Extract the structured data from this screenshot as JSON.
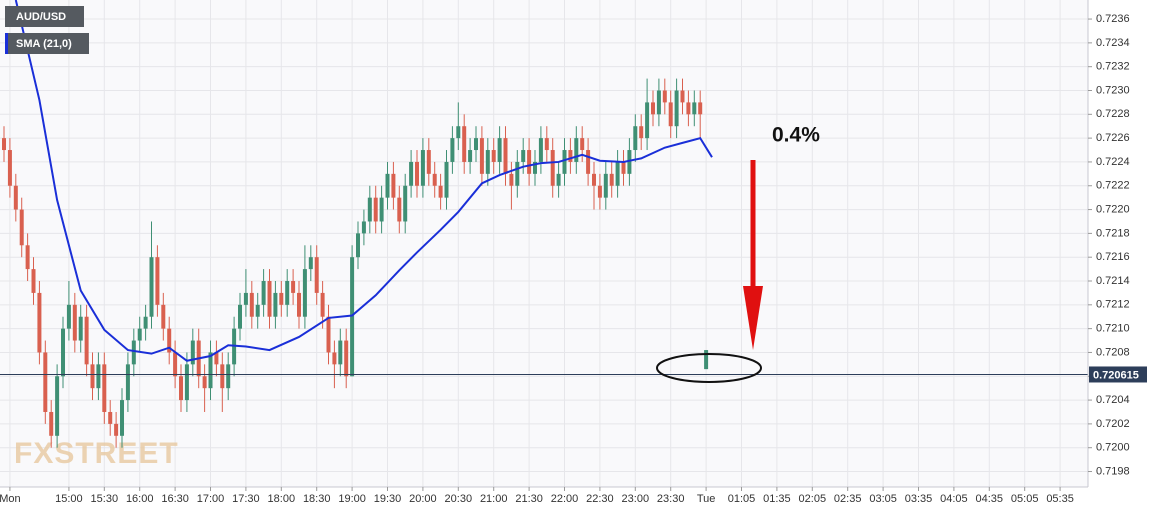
{
  "chart_data": {
    "type": "candlestick",
    "watermark": "FXSTREET",
    "annotation": "0.4%",
    "last_price": 0.720615,
    "grid": true,
    "xlim": [
      -0.68,
      183.73
    ],
    "ylim": [
      0.71967,
      0.72376
    ],
    "xticks": [
      {
        "value": 1,
        "label": "Mon"
      },
      {
        "value": 11,
        "label": "15:00"
      },
      {
        "value": 17,
        "label": "15:30"
      },
      {
        "value": 23,
        "label": "16:00"
      },
      {
        "value": 29,
        "label": "16:30"
      },
      {
        "value": 35,
        "label": "17:00"
      },
      {
        "value": 41,
        "label": "17:30"
      },
      {
        "value": 47,
        "label": "18:00"
      },
      {
        "value": 53,
        "label": "18:30"
      },
      {
        "value": 59,
        "label": "19:00"
      },
      {
        "value": 65,
        "label": "19:30"
      },
      {
        "value": 71,
        "label": "20:00"
      },
      {
        "value": 77,
        "label": "20:30"
      },
      {
        "value": 83,
        "label": "21:00"
      },
      {
        "value": 89,
        "label": "21:30"
      },
      {
        "value": 95,
        "label": "22:00"
      },
      {
        "value": 101,
        "label": "22:30"
      },
      {
        "value": 107,
        "label": "23:00"
      },
      {
        "value": 113,
        "label": "23:30"
      },
      {
        "value": 119,
        "label": "Tue"
      },
      {
        "value": 125,
        "label": "01:05"
      },
      {
        "value": 131,
        "label": "01:35"
      },
      {
        "value": 137,
        "label": "02:05"
      },
      {
        "value": 143,
        "label": "02:35"
      },
      {
        "value": 149,
        "label": "03:05"
      },
      {
        "value": 155,
        "label": "03:35"
      },
      {
        "value": 161,
        "label": "04:05"
      },
      {
        "value": 167,
        "label": "04:35"
      },
      {
        "value": 173,
        "label": "05:05"
      },
      {
        "value": 179,
        "label": "05:35"
      }
    ],
    "yticks": [
      0.7198,
      {
        "value": 0.72,
        "label": "0.7200"
      },
      0.7202,
      0.7204,
      0.7206,
      0.7208,
      {
        "value": 0.721,
        "label": "0.7210"
      },
      0.7212,
      0.7214,
      0.7216,
      0.7218,
      {
        "value": 0.722,
        "label": "0.7220"
      },
      0.7222,
      0.7224,
      0.7226,
      0.7228,
      {
        "value": 0.723,
        "label": "0.7230"
      },
      0.7232,
      0.7234,
      0.7236
    ],
    "series": [
      {
        "name": "AUD/USD",
        "type": "candlestick",
        "up_color": "#3f8f74",
        "down_color": "#d9604f",
        "x": [
          0,
          1,
          2,
          3,
          4,
          5,
          6,
          7,
          8,
          9,
          10,
          11,
          12,
          13,
          14,
          15,
          16,
          17,
          18,
          19,
          20,
          21,
          22,
          23,
          24,
          25,
          26,
          27,
          28,
          29,
          30,
          31,
          32,
          33,
          34,
          35,
          36,
          37,
          38,
          39,
          40,
          41,
          42,
          43,
          44,
          45,
          46,
          47,
          48,
          49,
          50,
          51,
          52,
          53,
          54,
          55,
          56,
          57,
          58,
          59,
          60,
          61,
          62,
          63,
          64,
          65,
          66,
          67,
          68,
          69,
          70,
          71,
          72,
          73,
          74,
          75,
          76,
          77,
          78,
          79,
          80,
          81,
          82,
          83,
          84,
          85,
          86,
          87,
          88,
          89,
          90,
          91,
          92,
          93,
          94,
          95,
          96,
          97,
          98,
          99,
          100,
          101,
          102,
          103,
          104,
          105,
          106,
          107,
          108,
          109,
          110,
          111,
          112,
          113,
          114,
          115,
          116,
          117,
          118,
          119
        ],
        "ohlc": [
          [
            0.7226,
            0.7227,
            0.7224,
            0.7225
          ],
          [
            0.7225,
            0.7226,
            0.7221,
            0.7222
          ],
          [
            0.7222,
            0.7223,
            0.7219,
            0.722
          ],
          [
            0.722,
            0.7221,
            0.7216,
            0.7217
          ],
          [
            0.7217,
            0.7218,
            0.7214,
            0.7215
          ],
          [
            0.7215,
            0.7216,
            0.7212,
            0.7213
          ],
          [
            0.7213,
            0.7214,
            0.7207,
            0.7208
          ],
          [
            0.7208,
            0.7209,
            0.7202,
            0.7203
          ],
          [
            0.7203,
            0.7204,
            0.72,
            0.7201
          ],
          [
            0.7201,
            0.7207,
            0.72,
            0.7206
          ],
          [
            0.7206,
            0.7211,
            0.7205,
            0.721
          ],
          [
            0.721,
            0.7214,
            0.7209,
            0.7212
          ],
          [
            0.7212,
            0.7213,
            0.7208,
            0.7209
          ],
          [
            0.7209,
            0.7212,
            0.7208,
            0.7211
          ],
          [
            0.7211,
            0.7212,
            0.7206,
            0.7207
          ],
          [
            0.7207,
            0.7208,
            0.7204,
            0.7205
          ],
          [
            0.7205,
            0.7208,
            0.7204,
            0.7207
          ],
          [
            0.7207,
            0.7208,
            0.7202,
            0.7203
          ],
          [
            0.7203,
            0.7204,
            0.7201,
            0.7202
          ],
          [
            0.7202,
            0.7203,
            0.72,
            0.7201
          ],
          [
            0.7201,
            0.7205,
            0.72,
            0.7204
          ],
          [
            0.7204,
            0.7208,
            0.7203,
            0.7207
          ],
          [
            0.7207,
            0.721,
            0.7206,
            0.7209
          ],
          [
            0.7209,
            0.7211,
            0.7208,
            0.721
          ],
          [
            0.721,
            0.7212,
            0.7209,
            0.7211
          ],
          [
            0.7211,
            0.7219,
            0.721,
            0.7216
          ],
          [
            0.7216,
            0.7217,
            0.7211,
            0.7212
          ],
          [
            0.7212,
            0.7213,
            0.7209,
            0.721
          ],
          [
            0.721,
            0.7211,
            0.7207,
            0.7208
          ],
          [
            0.7208,
            0.7209,
            0.7205,
            0.7206
          ],
          [
            0.7206,
            0.7207,
            0.7203,
            0.7204
          ],
          [
            0.7204,
            0.7208,
            0.7203,
            0.7207
          ],
          [
            0.7207,
            0.721,
            0.7206,
            0.7209
          ],
          [
            0.7209,
            0.721,
            0.7205,
            0.7206
          ],
          [
            0.7206,
            0.7207,
            0.7203,
            0.7205
          ],
          [
            0.7205,
            0.7209,
            0.7204,
            0.7208
          ],
          [
            0.7208,
            0.7209,
            0.7206,
            0.7207
          ],
          [
            0.7207,
            0.7208,
            0.7203,
            0.7205
          ],
          [
            0.7205,
            0.7208,
            0.7204,
            0.7207
          ],
          [
            0.7207,
            0.7211,
            0.7206,
            0.721
          ],
          [
            0.721,
            0.7213,
            0.7209,
            0.7212
          ],
          [
            0.7212,
            0.7215,
            0.7211,
            0.7213
          ],
          [
            0.7213,
            0.7214,
            0.721,
            0.7211
          ],
          [
            0.7211,
            0.7213,
            0.721,
            0.7212
          ],
          [
            0.7212,
            0.7215,
            0.7211,
            0.7214
          ],
          [
            0.7214,
            0.7215,
            0.721,
            0.7211
          ],
          [
            0.7211,
            0.7214,
            0.721,
            0.7213
          ],
          [
            0.7213,
            0.7214,
            0.7211,
            0.7212
          ],
          [
            0.7212,
            0.7215,
            0.7211,
            0.7214
          ],
          [
            0.7214,
            0.7215,
            0.7212,
            0.7213
          ],
          [
            0.7213,
            0.7214,
            0.721,
            0.7211
          ],
          [
            0.7211,
            0.7217,
            0.721,
            0.7215
          ],
          [
            0.7215,
            0.7217,
            0.7214,
            0.7216
          ],
          [
            0.7216,
            0.7217,
            0.7212,
            0.7213
          ],
          [
            0.7213,
            0.7214,
            0.721,
            0.7211
          ],
          [
            0.7211,
            0.7212,
            0.7207,
            0.7208
          ],
          [
            0.7208,
            0.7209,
            0.7205,
            0.7207
          ],
          [
            0.7207,
            0.721,
            0.7206,
            0.7209
          ],
          [
            0.7209,
            0.721,
            0.7205,
            0.7206
          ],
          [
            0.7206,
            0.7217,
            0.7206,
            0.7216
          ],
          [
            0.7216,
            0.7219,
            0.7215,
            0.7218
          ],
          [
            0.7218,
            0.722,
            0.7217,
            0.7219
          ],
          [
            0.7219,
            0.7222,
            0.7218,
            0.7221
          ],
          [
            0.7221,
            0.7222,
            0.7218,
            0.7219
          ],
          [
            0.7219,
            0.7222,
            0.7218,
            0.7221
          ],
          [
            0.7221,
            0.7224,
            0.722,
            0.7223
          ],
          [
            0.7223,
            0.7224,
            0.722,
            0.7221
          ],
          [
            0.7221,
            0.7222,
            0.7218,
            0.7219
          ],
          [
            0.7219,
            0.7223,
            0.7218,
            0.7222
          ],
          [
            0.7222,
            0.7225,
            0.7221,
            0.7224
          ],
          [
            0.7224,
            0.7225,
            0.7221,
            0.7222
          ],
          [
            0.7222,
            0.7226,
            0.7221,
            0.7225
          ],
          [
            0.7225,
            0.7226,
            0.7222,
            0.7223
          ],
          [
            0.7223,
            0.7224,
            0.7221,
            0.7222
          ],
          [
            0.7222,
            0.7223,
            0.722,
            0.7221
          ],
          [
            0.7221,
            0.7225,
            0.722,
            0.7224
          ],
          [
            0.7224,
            0.7227,
            0.7223,
            0.7226
          ],
          [
            0.7226,
            0.7229,
            0.7225,
            0.7227
          ],
          [
            0.7227,
            0.7228,
            0.7223,
            0.7224
          ],
          [
            0.7224,
            0.7226,
            0.7223,
            0.7225
          ],
          [
            0.7225,
            0.7227,
            0.7224,
            0.7226
          ],
          [
            0.7226,
            0.7227,
            0.7222,
            0.7223
          ],
          [
            0.7223,
            0.7226,
            0.7222,
            0.7225
          ],
          [
            0.7225,
            0.7226,
            0.7223,
            0.7224
          ],
          [
            0.7224,
            0.7227,
            0.7223,
            0.7226
          ],
          [
            0.7226,
            0.7227,
            0.7222,
            0.7223
          ],
          [
            0.7223,
            0.7224,
            0.722,
            0.7222
          ],
          [
            0.7222,
            0.7225,
            0.7221,
            0.7224
          ],
          [
            0.7224,
            0.7226,
            0.7223,
            0.7225
          ],
          [
            0.7225,
            0.7226,
            0.7222,
            0.7223
          ],
          [
            0.7223,
            0.7225,
            0.7222,
            0.7224
          ],
          [
            0.7224,
            0.7227,
            0.7223,
            0.7226
          ],
          [
            0.7226,
            0.7227,
            0.7224,
            0.7225
          ],
          [
            0.7225,
            0.7226,
            0.7221,
            0.7222
          ],
          [
            0.7222,
            0.7224,
            0.7221,
            0.7223
          ],
          [
            0.7223,
            0.7226,
            0.7222,
            0.7225
          ],
          [
            0.7225,
            0.7226,
            0.7223,
            0.7224
          ],
          [
            0.7224,
            0.7227,
            0.7223,
            0.7226
          ],
          [
            0.7226,
            0.7227,
            0.7224,
            0.7225
          ],
          [
            0.7225,
            0.7226,
            0.7222,
            0.7223
          ],
          [
            0.7223,
            0.7224,
            0.722,
            0.7222
          ],
          [
            0.7222,
            0.7223,
            0.722,
            0.7221
          ],
          [
            0.7221,
            0.7224,
            0.722,
            0.7223
          ],
          [
            0.7223,
            0.7224,
            0.7221,
            0.7222
          ],
          [
            0.7222,
            0.7225,
            0.7221,
            0.7224
          ],
          [
            0.7224,
            0.7225,
            0.7222,
            0.7223
          ],
          [
            0.7223,
            0.7226,
            0.7222,
            0.7225
          ],
          [
            0.7225,
            0.7228,
            0.7224,
            0.7227
          ],
          [
            0.7227,
            0.7228,
            0.7225,
            0.7226
          ],
          [
            0.7226,
            0.7231,
            0.7225,
            0.7229
          ],
          [
            0.7229,
            0.723,
            0.7227,
            0.7228
          ],
          [
            0.7228,
            0.7231,
            0.7227,
            0.723
          ],
          [
            0.723,
            0.7231,
            0.7228,
            0.7229
          ],
          [
            0.7229,
            0.723,
            0.7226,
            0.7227
          ],
          [
            0.7227,
            0.7231,
            0.7226,
            0.723
          ],
          [
            0.723,
            0.7231,
            0.7228,
            0.7229
          ],
          [
            0.7229,
            0.723,
            0.7227,
            0.7228
          ],
          [
            0.7228,
            0.723,
            0.7227,
            0.7229
          ],
          [
            0.7229,
            0.723,
            0.7226,
            0.7228
          ],
          [
            0.72066,
            0.72082,
            0.72066,
            0.72082
          ]
        ]
      },
      {
        "name": "SMA (21,0)",
        "type": "line",
        "color": "#1a2fd8",
        "x": [
          2,
          6,
          9,
          13,
          17,
          21,
          25,
          28,
          31,
          35,
          38,
          41,
          45,
          50,
          55,
          59,
          63,
          67,
          70,
          74,
          77,
          81,
          84,
          88,
          91,
          94,
          98,
          101,
          105,
          108,
          112,
          115,
          118,
          120
        ],
        "values": [
          0.72376,
          0.72292,
          0.72208,
          0.72132,
          0.72099,
          0.72082,
          0.72079,
          0.72084,
          0.72073,
          0.72077,
          0.72086,
          0.72085,
          0.72082,
          0.72093,
          0.72109,
          0.72111,
          0.72128,
          0.72149,
          0.72164,
          0.72183,
          0.72198,
          0.72222,
          0.72229,
          0.72236,
          0.72239,
          0.7224,
          0.72246,
          0.72241,
          0.7224,
          0.72243,
          0.72252,
          0.72256,
          0.7226,
          0.72244
        ]
      }
    ]
  }
}
